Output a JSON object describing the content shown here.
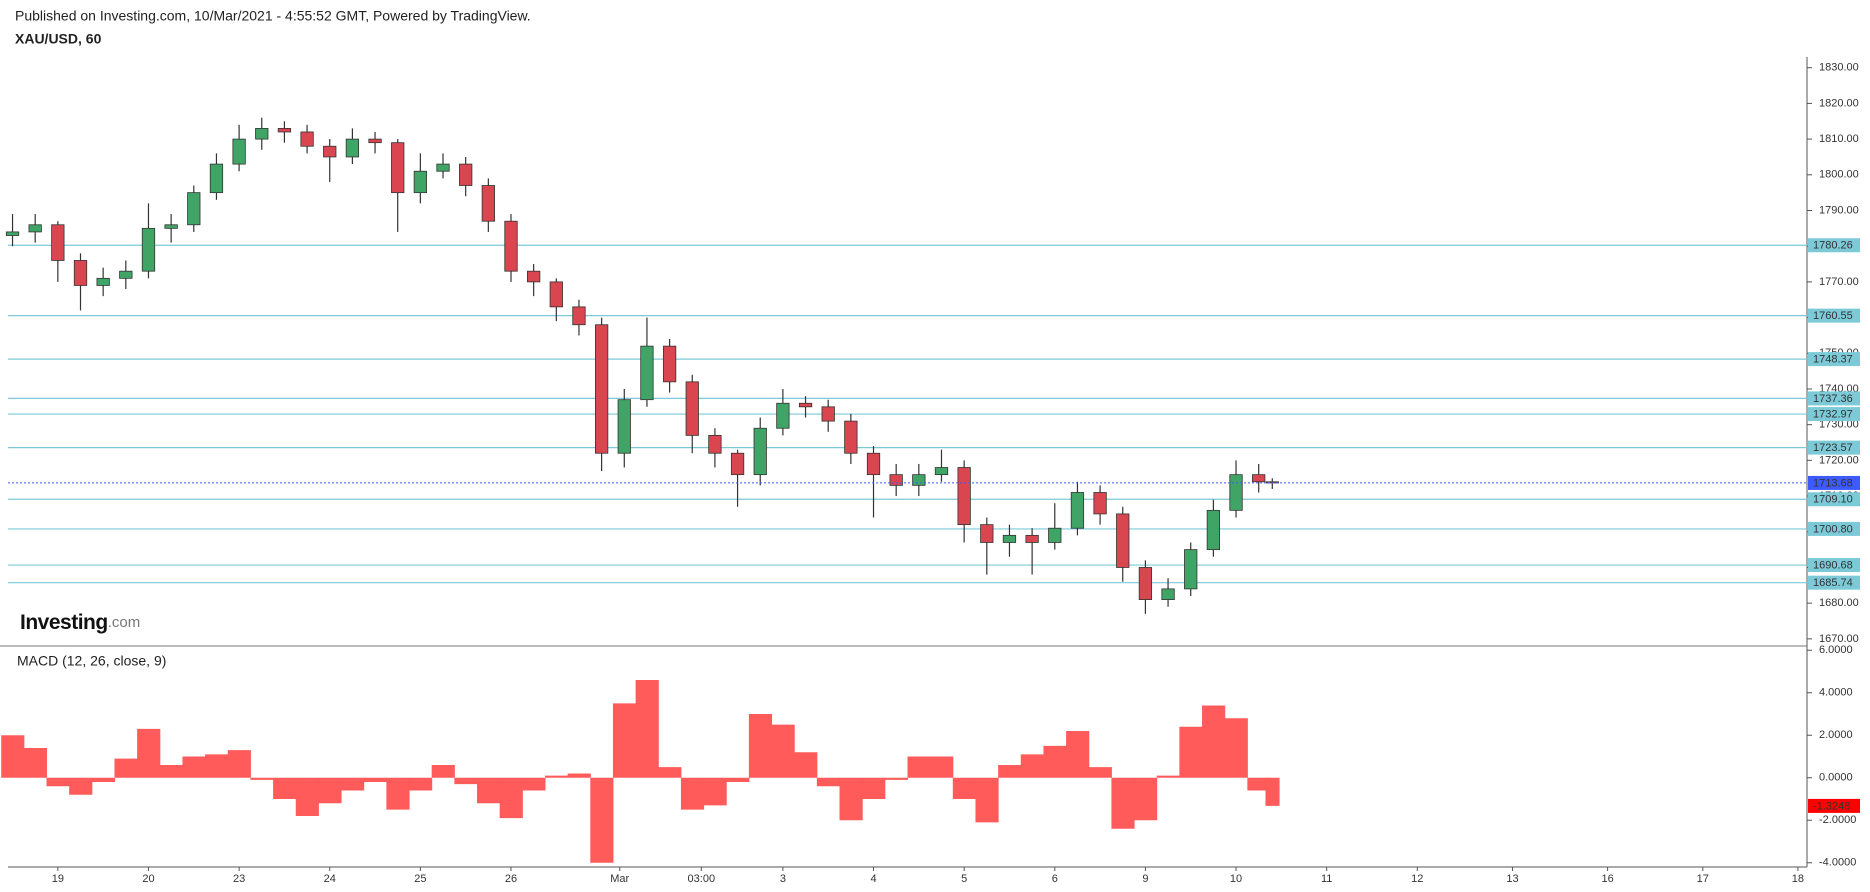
{
  "header": {
    "published": "Published on Investing.com, 10/Mar/2021 - 4:55:52 GMT, Powered by TradingView.",
    "symbol": "XAU/USD, 60"
  },
  "logo": {
    "brand": "Investing",
    "suffix": ".com"
  },
  "chart_data": [
    {
      "type": "candlestick",
      "x": [
        -0.5,
        -0.25,
        0,
        0.25,
        0.5,
        0.75,
        1,
        1.25,
        1.5,
        1.75,
        2,
        2.25,
        2.5,
        2.75,
        3,
        3.25,
        3.5,
        3.75,
        4,
        4.25,
        4.5,
        4.75,
        5,
        5.25,
        5.5,
        5.75,
        6,
        6.25,
        6.5,
        6.75,
        7,
        7.25,
        7.5,
        7.75,
        8,
        8.25,
        8.5,
        8.75,
        9,
        9.25,
        9.5,
        9.75,
        10,
        10.25,
        10.5,
        10.75,
        11,
        11.25,
        11.5,
        11.75,
        12,
        12.25,
        12.5,
        12.75,
        13,
        13.25,
        13.4
      ],
      "open": [
        1783,
        1784,
        1786,
        1776,
        1769,
        1771,
        1773,
        1785,
        1786,
        1795,
        1803,
        1810,
        1813,
        1812,
        1808,
        1805,
        1810,
        1809,
        1795,
        1801,
        1803,
        1797,
        1787,
        1773,
        1770,
        1763,
        1758,
        1722,
        1737,
        1752,
        1742,
        1727,
        1722,
        1716,
        1729,
        1736,
        1735,
        1731,
        1722,
        1716,
        1713,
        1716,
        1718,
        1702,
        1697,
        1699,
        1697,
        1701,
        1711,
        1705,
        1690,
        1681,
        1684,
        1695,
        1706,
        1716,
        1714
      ],
      "high": [
        1789,
        1789,
        1787,
        1778,
        1774,
        1776,
        1792,
        1789,
        1797,
        1806,
        1814,
        1816,
        1815,
        1814,
        1810,
        1813,
        1812,
        1810,
        1806,
        1806,
        1805,
        1799,
        1789,
        1775,
        1771,
        1765,
        1760,
        1740,
        1760,
        1754,
        1744,
        1729,
        1723,
        1732,
        1740,
        1738,
        1737,
        1733,
        1724,
        1719,
        1719,
        1723,
        1720,
        1704,
        1702,
        1701,
        1708,
        1714,
        1713,
        1707,
        1692,
        1687,
        1697,
        1709,
        1720,
        1719,
        1715
      ],
      "low": [
        1780,
        1781,
        1770,
        1762,
        1766,
        1768,
        1771,
        1781,
        1784,
        1793,
        1801,
        1807,
        1809,
        1806,
        1798,
        1803,
        1806,
        1784,
        1792,
        1799,
        1794,
        1784,
        1770,
        1766,
        1759,
        1755,
        1717,
        1718,
        1735,
        1739,
        1722,
        1718,
        1707,
        1713,
        1727,
        1732,
        1728,
        1719,
        1704,
        1710,
        1710,
        1714,
        1697,
        1688,
        1693,
        1688,
        1695,
        1699,
        1702,
        1686,
        1677,
        1679,
        1682,
        1693,
        1704,
        1711,
        1712
      ],
      "close": [
        1784,
        1786,
        1776,
        1769,
        1771,
        1773,
        1785,
        1786,
        1795,
        1803,
        1810,
        1813,
        1812,
        1808,
        1805,
        1810,
        1809,
        1795,
        1801,
        1803,
        1797,
        1787,
        1773,
        1770,
        1763,
        1758,
        1722,
        1737,
        1752,
        1742,
        1727,
        1722,
        1716,
        1729,
        1736,
        1735,
        1731,
        1722,
        1716,
        1713,
        1716,
        1718,
        1702,
        1697,
        1699,
        1697,
        1701,
        1711,
        1705,
        1690,
        1681,
        1684,
        1695,
        1706,
        1716,
        1714,
        1713.68
      ],
      "up_color": "#3fa466",
      "down_color": "#d9464f",
      "xlim": [
        -0.55,
        19.3
      ],
      "ylim": [
        1668,
        1833
      ],
      "yticks": [
        {
          "value": 1830,
          "label": "1830.00"
        },
        {
          "value": 1820,
          "label": "1820.00"
        },
        {
          "value": 1810,
          "label": "1810.00"
        },
        {
          "value": 1800,
          "label": "1800.00"
        },
        {
          "value": 1790,
          "label": "1790.00"
        },
        {
          "value": 1780,
          "label": "1780.00"
        },
        {
          "value": 1770,
          "label": "1770.00"
        },
        {
          "value": 1760,
          "label": "1760.00"
        },
        {
          "value": 1750,
          "label": "1750.00"
        },
        {
          "value": 1740,
          "label": "1740.00"
        },
        {
          "value": 1730,
          "label": "1730.00"
        },
        {
          "value": 1720,
          "label": "1720.00"
        },
        {
          "value": 1710,
          "label": "1710.00"
        },
        {
          "value": 1700,
          "label": "1700.00"
        },
        {
          "value": 1690,
          "label": "1690.00"
        },
        {
          "value": 1680,
          "label": "1680.00"
        },
        {
          "value": 1670,
          "label": "1670.00"
        }
      ],
      "levels": [
        1780.26,
        1760.55,
        1748.37,
        1737.36,
        1732.97,
        1723.57,
        {
          "value": 1709.1,
          "label": "1709.10"
        },
        {
          "value": 1700.8,
          "label": "1700.80"
        },
        1690.68,
        1685.74
      ],
      "level_color": "#7ccad8",
      "last_color": "#3d5afe"
    },
    {
      "type": "histogram",
      "title": "MACD (12, 26, close, 9)",
      "x": [
        -0.5,
        -0.25,
        0,
        0.25,
        0.5,
        0.75,
        1,
        1.25,
        1.5,
        1.75,
        2,
        2.25,
        2.5,
        2.75,
        3,
        3.25,
        3.5,
        3.75,
        4,
        4.25,
        4.5,
        4.75,
        5,
        5.25,
        5.5,
        5.75,
        6,
        6.25,
        6.5,
        6.75,
        7,
        7.25,
        7.5,
        7.75,
        8,
        8.25,
        8.5,
        8.75,
        9,
        9.25,
        9.5,
        9.75,
        10,
        10.25,
        10.5,
        10.75,
        11,
        11.25,
        11.5,
        11.75,
        12,
        12.25,
        12.5,
        12.75,
        13,
        13.25,
        13.4
      ],
      "values": [
        2.0,
        1.4,
        -0.4,
        -0.8,
        -0.2,
        0.9,
        2.3,
        0.6,
        1.0,
        1.1,
        1.3,
        -0.1,
        -1.0,
        -1.8,
        -1.2,
        -0.6,
        -0.2,
        -1.5,
        -0.6,
        0.6,
        -0.3,
        -1.2,
        -1.9,
        -0.6,
        0.1,
        0.2,
        -4.0,
        3.5,
        4.6,
        0.5,
        -1.5,
        -1.3,
        -0.2,
        3.0,
        2.5,
        1.2,
        -0.4,
        -2.0,
        -1.0,
        -0.1,
        1.0,
        1.0,
        -1.0,
        -2.1,
        0.6,
        1.1,
        1.5,
        2.2,
        0.5,
        -2.4,
        -2.0,
        0.1,
        2.4,
        3.4,
        2.8,
        -0.6,
        -1.3248
      ],
      "color": "#ff5b5b",
      "last_color": "#ff0000",
      "xlim": [
        -0.55,
        19.3
      ],
      "ylim": [
        -4.2,
        6.2
      ],
      "yticks": [
        {
          "value": 6,
          "label": "6.0000"
        },
        {
          "value": 4,
          "label": "4.0000"
        },
        {
          "value": 2,
          "label": "2.0000"
        },
        {
          "value": 0,
          "label": "0.0000"
        },
        {
          "value": -2,
          "label": "-2.0000"
        },
        {
          "value": -4,
          "label": "-4.0000"
        }
      ],
      "xticks": [
        {
          "value": 0,
          "label": "19"
        },
        {
          "value": 1,
          "label": "20"
        },
        {
          "value": 2,
          "label": "23"
        },
        {
          "value": 3,
          "label": "24"
        },
        {
          "value": 4,
          "label": "25"
        },
        {
          "value": 5,
          "label": "26"
        },
        {
          "value": 6.2,
          "label": "Mar"
        },
        {
          "value": 7.1,
          "label": "03:00"
        },
        {
          "value": 8,
          "label": "3"
        },
        {
          "value": 9,
          "label": "4"
        },
        {
          "value": 10,
          "label": "5"
        },
        {
          "value": 11,
          "label": "6"
        },
        {
          "value": 12,
          "label": "9"
        },
        {
          "value": 13,
          "label": "10"
        },
        {
          "value": 14,
          "label": "11"
        },
        {
          "value": 15,
          "label": "12"
        },
        {
          "value": 16.05,
          "label": "13"
        },
        {
          "value": 17.1,
          "label": "16"
        },
        {
          "value": 18.15,
          "label": "17"
        },
        {
          "value": 19.2,
          "label": "18"
        }
      ]
    }
  ]
}
